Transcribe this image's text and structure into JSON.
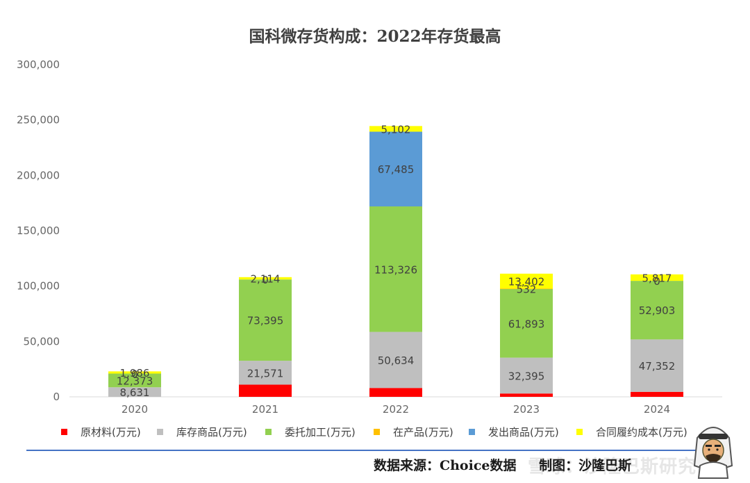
{
  "chart_data": {
    "type": "bar",
    "stacked": true,
    "title": "国科微存货构成：2022年存货最高",
    "categories": [
      "2020",
      "2021",
      "2022",
      "2023",
      "2024"
    ],
    "ylim": [
      0,
      300000
    ],
    "yticks": [
      "0",
      "50,000",
      "100,000",
      "150,000",
      "200,000",
      "250,000",
      "300,000"
    ],
    "grid": false,
    "legend_position": "bottom",
    "series": [
      {
        "name": "原材料(万元)",
        "color": "#ff0000",
        "values": [
          0,
          11000,
          8000,
          3000,
          4500
        ],
        "labels": [
          "",
          "",
          "",
          "",
          ""
        ]
      },
      {
        "name": "库存商品(万元)",
        "color": "#bfbfbf",
        "values": [
          8631,
          21571,
          50634,
          32395,
          47352
        ],
        "labels": [
          "8,631",
          "21,571",
          "50,634",
          "32,395",
          "47,352"
        ]
      },
      {
        "name": "委托加工(万元)",
        "color": "#92d050",
        "values": [
          12373,
          73395,
          113326,
          61893,
          52903
        ],
        "labels": [
          "12,373",
          "73,395",
          "113,326",
          "61,893",
          "52,903"
        ]
      },
      {
        "name": "在产品(万元)",
        "color": "#ffc000",
        "values": [
          0,
          0,
          0,
          532,
          0
        ],
        "labels": [
          "0",
          "0",
          "",
          "532",
          "0"
        ]
      },
      {
        "name": "发出商品(万元)",
        "color": "#5b9bd5",
        "values": [
          0,
          0,
          67485,
          0,
          0
        ],
        "labels": [
          "",
          "",
          "67,485",
          "",
          ""
        ]
      },
      {
        "name": "合同履约成本(万元)",
        "color": "#ffff00",
        "values": [
          1986,
          2114,
          5102,
          13402,
          5817
        ],
        "labels": [
          "1,986",
          "2,114",
          "5,102",
          "13,402",
          "5,817"
        ]
      }
    ]
  },
  "footer": {
    "source": "数据来源：Choice数据",
    "author": "制图：沙隆巴斯",
    "watermark": "雪球：沙隆巴斯研究"
  },
  "icons": {
    "avatar": "cartoon-arab-man-avatar-icon"
  }
}
